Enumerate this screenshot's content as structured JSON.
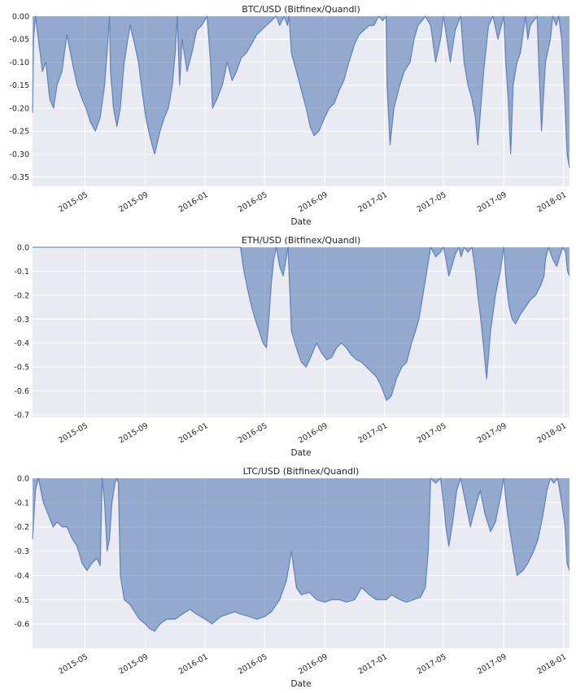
{
  "chart_data": [
    {
      "type": "area",
      "title": "BTC/USD (Bitfinex/Quandl)",
      "xlabel": "Date",
      "ylabel": "",
      "xlim": [
        "2015-01-14",
        "2018-01-13"
      ],
      "ylim": [
        -0.37,
        0.0
      ],
      "yticks": [
        0.0,
        -0.05,
        -0.1,
        -0.15,
        -0.2,
        -0.25,
        -0.3,
        -0.35
      ],
      "ytick_labels": [
        "0.00",
        "-0.05",
        "-0.10",
        "-0.15",
        "-0.20",
        "-0.25",
        "-0.30",
        "-0.35"
      ],
      "xticks": [
        "2015-05-01",
        "2015-09-01",
        "2016-01-01",
        "2016-05-01",
        "2016-09-01",
        "2017-01-01",
        "2017-05-01",
        "2017-09-01",
        "2018-01-01"
      ],
      "xtick_labels": [
        "2015-05",
        "2015-09",
        "2016-01",
        "2016-05",
        "2016-09",
        "2017-01",
        "2017-05",
        "2017-09",
        "2018-01"
      ],
      "grid": true,
      "color": "#4c72b0",
      "x": [
        "2015-01-14",
        "2015-01-16",
        "2015-01-20",
        "2015-01-26",
        "2015-02-03",
        "2015-02-10",
        "2015-02-18",
        "2015-02-26",
        "2015-03-05",
        "2015-03-15",
        "2015-03-25",
        "2015-04-05",
        "2015-04-15",
        "2015-04-25",
        "2015-05-03",
        "2015-05-12",
        "2015-05-22",
        "2015-06-01",
        "2015-06-10",
        "2015-06-17",
        "2015-06-20",
        "2015-06-22",
        "2015-06-28",
        "2015-07-05",
        "2015-07-12",
        "2015-07-20",
        "2015-08-01",
        "2015-08-10",
        "2015-08-18",
        "2015-08-25",
        "2015-09-02",
        "2015-09-10",
        "2015-09-20",
        "2015-10-01",
        "2015-10-10",
        "2015-10-18",
        "2015-10-26",
        "2015-11-01",
        "2015-11-05",
        "2015-11-10",
        "2015-11-15",
        "2015-11-25",
        "2015-12-05",
        "2015-12-15",
        "2015-12-25",
        "2016-01-05",
        "2016-01-12",
        "2016-01-16",
        "2016-01-25",
        "2016-02-05",
        "2016-02-15",
        "2016-02-25",
        "2016-03-05",
        "2016-03-15",
        "2016-03-25",
        "2016-04-05",
        "2016-04-15",
        "2016-04-25",
        "2016-05-05",
        "2016-05-15",
        "2016-05-25",
        "2016-06-01",
        "2016-06-10",
        "2016-06-17",
        "2016-06-20",
        "2016-06-25",
        "2016-07-05",
        "2016-07-15",
        "2016-07-25",
        "2016-08-02",
        "2016-08-10",
        "2016-08-20",
        "2016-09-01",
        "2016-09-10",
        "2016-09-20",
        "2016-10-01",
        "2016-10-10",
        "2016-10-20",
        "2016-11-01",
        "2016-11-10",
        "2016-11-20",
        "2016-12-01",
        "2016-12-10",
        "2016-12-20",
        "2016-12-28",
        "2017-01-04",
        "2017-01-06",
        "2017-01-12",
        "2017-01-20",
        "2017-02-01",
        "2017-02-10",
        "2017-02-22",
        "2017-03-02",
        "2017-03-10",
        "2017-03-18",
        "2017-03-25",
        "2017-04-05",
        "2017-04-15",
        "2017-04-25",
        "2017-05-01",
        "2017-05-08",
        "2017-05-15",
        "2017-05-25",
        "2017-06-05",
        "2017-06-12",
        "2017-06-20",
        "2017-06-28",
        "2017-07-05",
        "2017-07-10",
        "2017-07-16",
        "2017-07-22",
        "2017-08-01",
        "2017-08-10",
        "2017-08-20",
        "2017-09-01",
        "2017-09-05",
        "2017-09-10",
        "2017-09-15",
        "2017-09-20",
        "2017-09-28",
        "2017-10-05",
        "2017-10-15",
        "2017-10-20",
        "2017-10-25",
        "2017-11-01",
        "2017-11-08",
        "2017-11-12",
        "2017-11-17",
        "2017-11-25",
        "2017-12-05",
        "2017-12-10",
        "2017-12-17",
        "2017-12-22",
        "2017-12-28",
        "2018-01-04",
        "2018-01-08",
        "2018-01-13"
      ],
      "values": [
        -0.21,
        -0.05,
        0.0,
        -0.05,
        -0.12,
        -0.1,
        -0.18,
        -0.2,
        -0.15,
        -0.12,
        -0.04,
        -0.1,
        -0.15,
        -0.18,
        -0.2,
        -0.23,
        -0.25,
        -0.22,
        -0.15,
        -0.05,
        0.0,
        -0.12,
        -0.2,
        -0.24,
        -0.2,
        -0.1,
        -0.02,
        -0.06,
        -0.1,
        -0.16,
        -0.22,
        -0.26,
        -0.3,
        -0.25,
        -0.22,
        -0.2,
        -0.15,
        -0.08,
        0.0,
        -0.15,
        -0.05,
        -0.12,
        -0.08,
        -0.03,
        -0.02,
        0.0,
        -0.1,
        -0.2,
        -0.18,
        -0.15,
        -0.1,
        -0.14,
        -0.12,
        -0.09,
        -0.08,
        -0.06,
        -0.04,
        -0.03,
        -0.02,
        -0.01,
        0.0,
        -0.02,
        0.0,
        -0.02,
        0.0,
        -0.08,
        -0.12,
        -0.16,
        -0.2,
        -0.24,
        -0.26,
        -0.25,
        -0.22,
        -0.2,
        -0.19,
        -0.16,
        -0.14,
        -0.1,
        -0.06,
        -0.04,
        -0.03,
        -0.02,
        -0.02,
        0.0,
        -0.01,
        0.0,
        -0.15,
        -0.28,
        -0.2,
        -0.15,
        -0.12,
        -0.1,
        -0.05,
        -0.02,
        -0.01,
        0.0,
        -0.02,
        -0.1,
        -0.05,
        0.0,
        -0.05,
        -0.1,
        -0.03,
        0.0,
        -0.1,
        -0.15,
        -0.18,
        -0.22,
        -0.28,
        -0.2,
        -0.12,
        -0.02,
        0.0,
        -0.05,
        0.0,
        -0.1,
        -0.18,
        -0.3,
        -0.15,
        -0.1,
        -0.08,
        0.0,
        -0.05,
        -0.02,
        -0.01,
        0.0,
        -0.12,
        -0.25,
        -0.1,
        -0.05,
        0.0,
        -0.02,
        0.0,
        -0.05,
        -0.2,
        -0.3,
        -0.33
      ]
    },
    {
      "type": "area",
      "title": "ETH/USD (Bitfinex/Quandl)",
      "xlabel": "Date",
      "ylabel": "",
      "xlim": [
        "2015-01-14",
        "2018-01-13"
      ],
      "ylim": [
        -0.71,
        0.0
      ],
      "yticks": [
        0.0,
        -0.1,
        -0.2,
        -0.3,
        -0.4,
        -0.5,
        -0.6,
        -0.7
      ],
      "ytick_labels": [
        "0.0",
        "-0.1",
        "-0.2",
        "-0.3",
        "-0.4",
        "-0.5",
        "-0.6",
        "-0.7"
      ],
      "xticks": [
        "2015-05-01",
        "2015-09-01",
        "2016-01-01",
        "2016-05-01",
        "2016-09-01",
        "2017-01-01",
        "2017-05-01",
        "2017-09-01",
        "2018-01-01"
      ],
      "xtick_labels": [
        "2015-05",
        "2015-09",
        "2016-01",
        "2016-05",
        "2016-09",
        "2017-01",
        "2017-05",
        "2017-09",
        "2018-01"
      ],
      "grid": true,
      "color": "#4c72b0",
      "x": [
        "2015-01-14",
        "2016-03-13",
        "2016-03-20",
        "2016-03-28",
        "2016-04-05",
        "2016-04-12",
        "2016-04-20",
        "2016-04-28",
        "2016-05-05",
        "2016-05-10",
        "2016-05-15",
        "2016-05-20",
        "2016-05-25",
        "2016-06-01",
        "2016-06-08",
        "2016-06-14",
        "2016-06-18",
        "2016-06-25",
        "2016-07-05",
        "2016-07-15",
        "2016-07-25",
        "2016-08-05",
        "2016-08-15",
        "2016-08-25",
        "2016-09-05",
        "2016-09-15",
        "2016-09-25",
        "2016-10-05",
        "2016-10-15",
        "2016-10-25",
        "2016-11-05",
        "2016-11-15",
        "2016-11-25",
        "2016-12-05",
        "2016-12-15",
        "2016-12-25",
        "2017-01-05",
        "2017-01-15",
        "2017-01-25",
        "2017-02-05",
        "2017-02-15",
        "2017-02-25",
        "2017-03-05",
        "2017-03-12",
        "2017-03-20",
        "2017-03-28",
        "2017-04-05",
        "2017-04-15",
        "2017-04-25",
        "2017-05-01",
        "2017-05-06",
        "2017-05-12",
        "2017-05-18",
        "2017-05-25",
        "2017-06-01",
        "2017-06-06",
        "2017-06-12",
        "2017-06-20",
        "2017-06-28",
        "2017-07-05",
        "2017-07-10",
        "2017-07-16",
        "2017-07-22",
        "2017-07-28",
        "2017-08-05",
        "2017-08-15",
        "2017-08-25",
        "2017-09-01",
        "2017-09-06",
        "2017-09-12",
        "2017-09-18",
        "2017-09-25",
        "2017-10-05",
        "2017-10-15",
        "2017-10-25",
        "2017-11-05",
        "2017-11-15",
        "2017-11-22",
        "2017-11-25",
        "2017-12-01",
        "2017-12-10",
        "2017-12-18",
        "2017-12-24",
        "2017-12-30",
        "2018-01-05",
        "2018-01-09",
        "2018-01-13"
      ],
      "values": [
        0.0,
        0.0,
        -0.1,
        -0.18,
        -0.25,
        -0.3,
        -0.35,
        -0.4,
        -0.42,
        -0.3,
        -0.15,
        -0.05,
        0.0,
        -0.08,
        -0.12,
        -0.05,
        0.0,
        -0.35,
        -0.42,
        -0.48,
        -0.5,
        -0.45,
        -0.4,
        -0.44,
        -0.47,
        -0.46,
        -0.42,
        -0.4,
        -0.42,
        -0.45,
        -0.47,
        -0.48,
        -0.5,
        -0.52,
        -0.54,
        -0.58,
        -0.64,
        -0.62,
        -0.55,
        -0.5,
        -0.48,
        -0.4,
        -0.35,
        -0.3,
        -0.2,
        -0.1,
        0.0,
        -0.04,
        -0.02,
        0.0,
        -0.05,
        -0.12,
        -0.08,
        -0.03,
        0.0,
        -0.04,
        0.0,
        -0.02,
        0.0,
        -0.1,
        -0.2,
        -0.3,
        -0.42,
        -0.55,
        -0.35,
        -0.2,
        -0.1,
        0.0,
        -0.15,
        -0.25,
        -0.3,
        -0.32,
        -0.28,
        -0.25,
        -0.22,
        -0.2,
        -0.16,
        -0.12,
        -0.05,
        0.0,
        -0.05,
        -0.08,
        -0.04,
        0.0,
        -0.02,
        -0.1,
        -0.12
      ]
    },
    {
      "type": "area",
      "title": "LTC/USD (Bitfinex/Quandl)",
      "xlabel": "Date",
      "ylabel": "",
      "xlim": [
        "2015-01-14",
        "2018-01-13"
      ],
      "ylim": [
        -0.7,
        0.0
      ],
      "yticks": [
        0.0,
        -0.1,
        -0.2,
        -0.3,
        -0.4,
        -0.5,
        -0.6
      ],
      "ytick_labels": [
        "0.0",
        "-0.1",
        "-0.2",
        "-0.3",
        "-0.4",
        "-0.5",
        "-0.6"
      ],
      "xticks": [
        "2015-05-01",
        "2015-09-01",
        "2016-01-01",
        "2016-05-01",
        "2016-09-01",
        "2017-01-01",
        "2017-05-01",
        "2017-09-01",
        "2018-01-01"
      ],
      "xtick_labels": [
        "2015-05",
        "2015-09",
        "2016-01",
        "2016-05",
        "2016-09",
        "2017-01",
        "2017-05",
        "2017-09",
        "2018-01"
      ],
      "grid": true,
      "color": "#4c72b0",
      "x": [
        "2015-01-14",
        "2015-01-20",
        "2015-01-26",
        "2015-02-05",
        "2015-02-15",
        "2015-02-25",
        "2015-03-05",
        "2015-03-15",
        "2015-03-25",
        "2015-04-05",
        "2015-04-15",
        "2015-04-25",
        "2015-05-05",
        "2015-05-15",
        "2015-05-25",
        "2015-06-01",
        "2015-06-05",
        "2015-06-10",
        "2015-06-15",
        "2015-06-20",
        "2015-06-25",
        "2015-07-01",
        "2015-07-05",
        "2015-07-08",
        "2015-07-12",
        "2015-07-20",
        "2015-08-01",
        "2015-08-10",
        "2015-08-20",
        "2015-09-01",
        "2015-09-10",
        "2015-09-20",
        "2015-10-01",
        "2015-10-15",
        "2015-11-01",
        "2015-11-15",
        "2015-12-01",
        "2015-12-15",
        "2016-01-01",
        "2016-01-15",
        "2016-02-01",
        "2016-02-15",
        "2016-03-01",
        "2016-03-15",
        "2016-04-01",
        "2016-04-15",
        "2016-05-01",
        "2016-05-15",
        "2016-06-01",
        "2016-06-15",
        "2016-06-25",
        "2016-07-05",
        "2016-07-15",
        "2016-08-01",
        "2016-08-15",
        "2016-09-01",
        "2016-09-15",
        "2016-10-01",
        "2016-10-15",
        "2016-11-01",
        "2016-11-15",
        "2016-12-01",
        "2016-12-15",
        "2016-12-25",
        "2017-01-05",
        "2017-01-15",
        "2017-02-01",
        "2017-02-15",
        "2017-03-01",
        "2017-03-15",
        "2017-03-25",
        "2017-03-31",
        "2017-04-05",
        "2017-04-15",
        "2017-04-25",
        "2017-05-01",
        "2017-05-06",
        "2017-05-12",
        "2017-05-20",
        "2017-05-28",
        "2017-06-05",
        "2017-06-15",
        "2017-06-25",
        "2017-07-05",
        "2017-07-15",
        "2017-07-25",
        "2017-08-05",
        "2017-08-15",
        "2017-08-25",
        "2017-09-01",
        "2017-09-06",
        "2017-09-12",
        "2017-09-20",
        "2017-09-28",
        "2017-10-10",
        "2017-10-20",
        "2017-11-01",
        "2017-11-10",
        "2017-11-20",
        "2017-11-28",
        "2017-12-05",
        "2017-12-12",
        "2017-12-20",
        "2017-12-28",
        "2018-01-04",
        "2018-01-08",
        "2018-01-13"
      ],
      "values": [
        -0.25,
        -0.05,
        0.0,
        -0.1,
        -0.15,
        -0.2,
        -0.18,
        -0.2,
        -0.2,
        -0.25,
        -0.28,
        -0.35,
        -0.38,
        -0.35,
        -0.33,
        -0.36,
        0.0,
        -0.1,
        -0.3,
        -0.25,
        -0.1,
        -0.02,
        0.0,
        -0.02,
        -0.4,
        -0.5,
        -0.52,
        -0.55,
        -0.58,
        -0.6,
        -0.62,
        -0.63,
        -0.6,
        -0.58,
        -0.58,
        -0.56,
        -0.54,
        -0.56,
        -0.58,
        -0.6,
        -0.57,
        -0.56,
        -0.55,
        -0.56,
        -0.57,
        -0.58,
        -0.57,
        -0.55,
        -0.5,
        -0.42,
        -0.3,
        -0.45,
        -0.48,
        -0.47,
        -0.5,
        -0.51,
        -0.5,
        -0.5,
        -0.51,
        -0.5,
        -0.45,
        -0.48,
        -0.5,
        -0.5,
        -0.5,
        -0.48,
        -0.5,
        -0.51,
        -0.5,
        -0.49,
        -0.45,
        -0.3,
        0.0,
        -0.02,
        0.0,
        -0.1,
        -0.2,
        -0.28,
        -0.18,
        -0.05,
        0.0,
        -0.1,
        -0.2,
        -0.12,
        -0.05,
        -0.15,
        -0.22,
        -0.18,
        -0.08,
        0.0,
        -0.1,
        -0.2,
        -0.3,
        -0.4,
        -0.38,
        -0.35,
        -0.3,
        -0.25,
        -0.15,
        -0.05,
        0.0,
        -0.02,
        0.0,
        -0.1,
        -0.2,
        -0.35,
        -0.38
      ]
    }
  ]
}
